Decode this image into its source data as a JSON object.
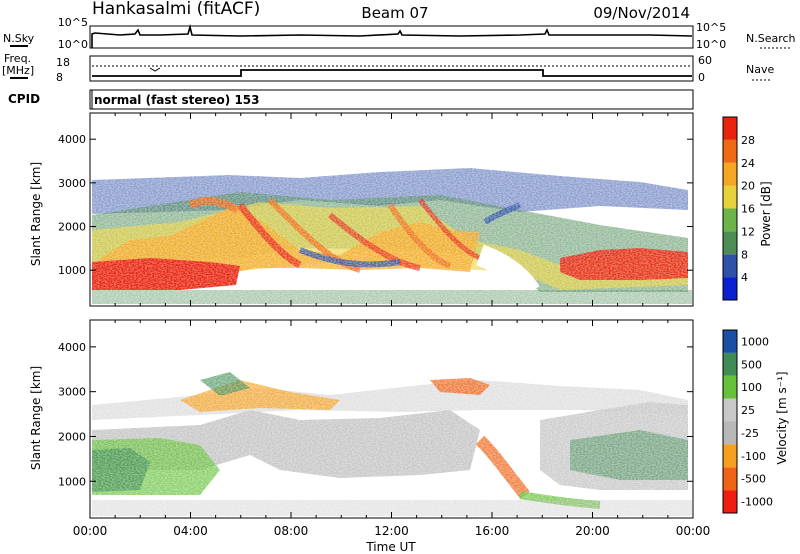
{
  "header": {
    "station": "Hankasalmi (fitACF)",
    "beam": "Beam 07",
    "date": "09/Nov/2014"
  },
  "noise_panel": {
    "left_label": "N.Sky",
    "left_ticks": [
      "10^5",
      "10^0"
    ],
    "right_label": "N.Search",
    "right_ticks": [
      "10^5",
      "10^0"
    ]
  },
  "freq_panel": {
    "left_label_line1": "Freq.",
    "left_label_line2": "[MHz]",
    "left_ticks": [
      "18",
      "8"
    ],
    "right_label": "Nave",
    "right_ticks": [
      "60",
      "0"
    ]
  },
  "cpid": {
    "label": "CPID",
    "mode": "normal (fast stereo) 153"
  },
  "colors": {
    "power": [
      "#0a1ed2",
      "#2f51a8",
      "#4e8c56",
      "#6cb44a",
      "#e8d23a",
      "#f5a623",
      "#ef6a15",
      "#e8240f"
    ],
    "velocity": [
      "#f01d12",
      "#f06418",
      "#f5a01e",
      "#b8b8b8",
      "#c8c8c8",
      "#66c23a",
      "#3f8d54",
      "#1a4fa3"
    ]
  },
  "chart_data": [
    {
      "type": "heatmap",
      "title": "Power",
      "ylabel": "Slant Range [km]",
      "xlabel": "",
      "ylim": [
        180,
        4600
      ],
      "xlim": [
        0,
        24
      ],
      "yticks": [
        "1000",
        "2000",
        "3000",
        "4000"
      ],
      "xticks": [
        "00:00",
        "04:00",
        "08:00",
        "12:00",
        "16:00",
        "20:00",
        "00:00"
      ],
      "colorbar_label": "Power [dB]",
      "colorbar_ticks": [
        "4",
        "8",
        "12",
        "16",
        "20",
        "24",
        "28"
      ]
    },
    {
      "type": "heatmap",
      "title": "Velocity",
      "ylabel": "Slant Range [km]",
      "xlabel": "Time UT",
      "ylim": [
        180,
        4600
      ],
      "xlim": [
        0,
        24
      ],
      "yticks": [
        "1000",
        "2000",
        "3000",
        "4000"
      ],
      "xticks": [
        "00:00",
        "04:00",
        "08:00",
        "12:00",
        "16:00",
        "20:00",
        "00:00"
      ],
      "colorbar_label": "Velocity [m s⁻¹]",
      "colorbar_ticks": [
        "1000",
        "500",
        "100",
        "25",
        "-25",
        "-100",
        "-500",
        "-1000"
      ]
    }
  ]
}
